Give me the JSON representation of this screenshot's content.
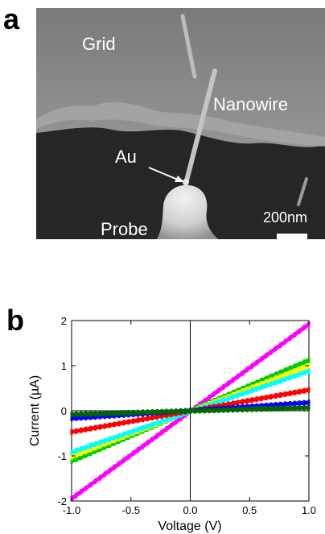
{
  "panels": {
    "a": {
      "letter": "a"
    },
    "b": {
      "letter": "b"
    }
  },
  "micrograph": {
    "labels": {
      "grid": "Grid",
      "nanowire": "Nanowire",
      "au": "Au",
      "probe": "Probe",
      "scale_bar": "200nm"
    },
    "colors": {
      "label": "#ffffff",
      "background_dark": "#2a2a2a",
      "background_light": "#8a8a8a"
    }
  },
  "chart_data": {
    "type": "line",
    "title": "",
    "xlabel": "Voltage (V)",
    "ylabel": "Current (µA)",
    "xlim": [
      -1.0,
      1.0
    ],
    "ylim": [
      -2,
      2
    ],
    "xticks": [
      "-1.0",
      "-0.5",
      "0.0",
      "0.5",
      "1.0"
    ],
    "yticks": [
      "-2",
      "-1",
      "0",
      "1",
      "2"
    ],
    "zero_lines": true,
    "series": [
      {
        "color": "#ff00ff",
        "x": [
          -1.0,
          1.0
        ],
        "y": [
          -1.95,
          1.92
        ]
      },
      {
        "color": "#00cc00",
        "x": [
          -1.0,
          1.0
        ],
        "y": [
          -1.12,
          1.12
        ]
      },
      {
        "color": "#ffff00",
        "x": [
          -1.0,
          1.0
        ],
        "y": [
          -1.02,
          1.0
        ]
      },
      {
        "color": "#00ffff",
        "x": [
          -1.0,
          1.0
        ],
        "y": [
          -0.92,
          0.88
        ]
      },
      {
        "color": "#ff0000",
        "x": [
          -1.0,
          1.0
        ],
        "y": [
          -0.47,
          0.46
        ]
      },
      {
        "color": "#0000ff",
        "x": [
          -1.0,
          1.0
        ],
        "y": [
          -0.17,
          0.18
        ]
      },
      {
        "color": "#006600",
        "x": [
          -1.0,
          1.0
        ],
        "y": [
          -0.08,
          0.07
        ]
      }
    ]
  }
}
